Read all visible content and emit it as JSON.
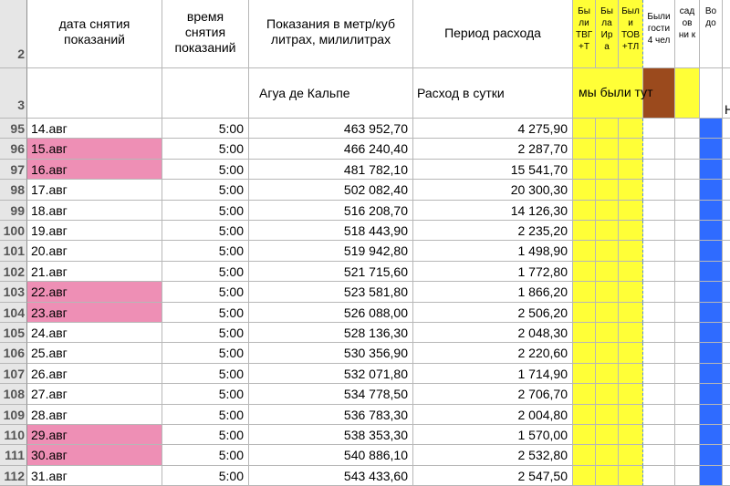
{
  "row_numbers": {
    "header1": "2",
    "header2": "3"
  },
  "headers": {
    "date": "дата снятия показаний",
    "time": "время снятия показаний",
    "reading": "Показания в метр/куб литрах, милилитрах",
    "period": "Период расхода",
    "reading_sub": "Агуа де Кальпе",
    "period_sub": "Расход в сутки",
    "col_f": "Бы ли ТВГ +Т",
    "col_g": "Бы ла Ир а",
    "col_h": "Был и ТОВ +ТЛ",
    "col_i": "Были гости 4 чел",
    "col_j": "сад ов ни к",
    "col_k": "Во до",
    "merged_note": "мы были тут",
    "overflow_l": "Н"
  },
  "rows": [
    {
      "num": "95",
      "date": "14.авг",
      "time": "5:00",
      "reading": "463 952,70",
      "daily": "4 275,90",
      "highlight": false
    },
    {
      "num": "96",
      "date": "15.авг",
      "time": "5:00",
      "reading": "466 240,40",
      "daily": "2 287,70",
      "highlight": true
    },
    {
      "num": "97",
      "date": "16.авг",
      "time": "5:00",
      "reading": "481 782,10",
      "daily": "15 541,70",
      "highlight": true
    },
    {
      "num": "98",
      "date": "17.авг",
      "time": "5:00",
      "reading": "502 082,40",
      "daily": "20 300,30",
      "highlight": false
    },
    {
      "num": "99",
      "date": "18.авг",
      "time": "5:00",
      "reading": "516 208,70",
      "daily": "14 126,30",
      "highlight": false
    },
    {
      "num": "100",
      "date": "19.авг",
      "time": "5:00",
      "reading": "518 443,90",
      "daily": "2 235,20",
      "highlight": false
    },
    {
      "num": "101",
      "date": "20.авг",
      "time": "5:00",
      "reading": "519 942,80",
      "daily": "1 498,90",
      "highlight": false
    },
    {
      "num": "102",
      "date": "21.авг",
      "time": "5:00",
      "reading": "521 715,60",
      "daily": "1 772,80",
      "highlight": false
    },
    {
      "num": "103",
      "date": "22.авг",
      "time": "5:00",
      "reading": "523 581,80",
      "daily": "1 866,20",
      "highlight": true
    },
    {
      "num": "104",
      "date": "23.авг",
      "time": "5:00",
      "reading": "526 088,00",
      "daily": "2 506,20",
      "highlight": true
    },
    {
      "num": "105",
      "date": "24.авг",
      "time": "5:00",
      "reading": "528 136,30",
      "daily": "2 048,30",
      "highlight": false
    },
    {
      "num": "106",
      "date": "25.авг",
      "time": "5:00",
      "reading": "530 356,90",
      "daily": "2 220,60",
      "highlight": false
    },
    {
      "num": "107",
      "date": "26.авг",
      "time": "5:00",
      "reading": "532 071,80",
      "daily": "1 714,90",
      "highlight": false
    },
    {
      "num": "108",
      "date": "27.авг",
      "time": "5:00",
      "reading": "534 778,50",
      "daily": "2 706,70",
      "highlight": false
    },
    {
      "num": "109",
      "date": "28.авг",
      "time": "5:00",
      "reading": "536 783,30",
      "daily": "2 004,80",
      "highlight": false
    },
    {
      "num": "110",
      "date": "29.авг",
      "time": "5:00",
      "reading": "538 353,30",
      "daily": "1 570,00",
      "highlight": true
    },
    {
      "num": "111",
      "date": "30.авг",
      "time": "5:00",
      "reading": "540 886,10",
      "daily": "2 532,80",
      "highlight": true
    },
    {
      "num": "112",
      "date": "31.авг",
      "time": "5:00",
      "reading": "543 433,60",
      "daily": "2 547,50",
      "highlight": false
    }
  ],
  "colors": {
    "yellow": "#ffff37",
    "brown": "#9b4a1d",
    "blue": "#2f6bff",
    "pink": "#ee8fb5"
  }
}
